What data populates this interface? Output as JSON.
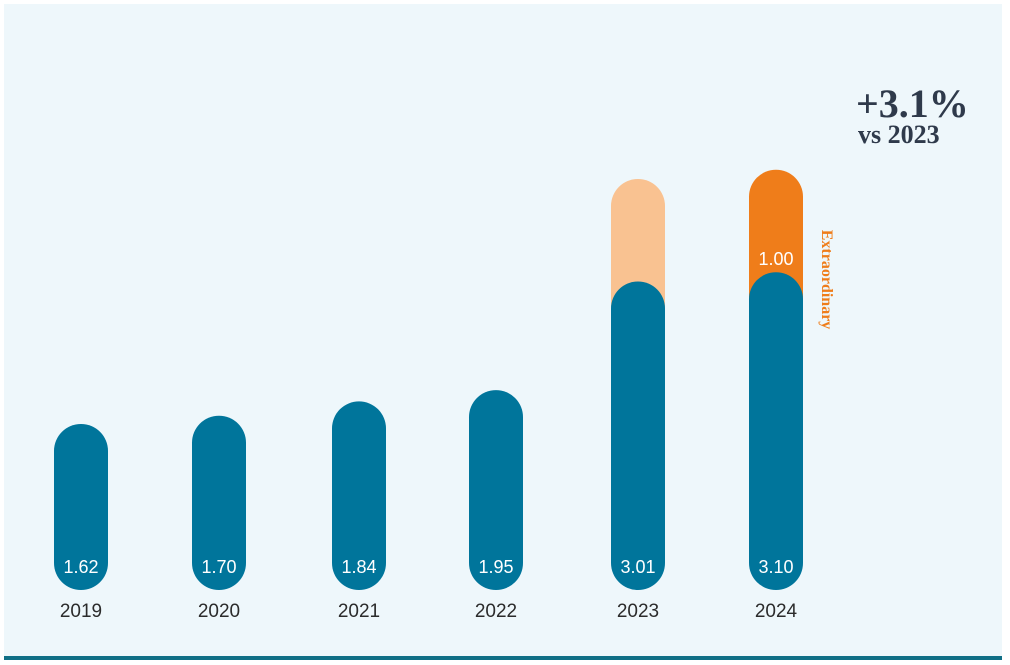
{
  "chart_data": {
    "type": "bar",
    "stacked": true,
    "categories": [
      "2019",
      "2020",
      "2021",
      "2022",
      "2023",
      "2024"
    ],
    "series": [
      {
        "values": [
          1.62,
          1.7,
          1.84,
          1.95,
          3.01,
          3.1
        ],
        "labels": [
          "1.62",
          "1.70",
          "1.84",
          "1.95",
          "3.01",
          "3.10"
        ],
        "color": "#00759b"
      },
      {
        "name": "Extraordinary",
        "values": [
          null,
          null,
          null,
          null,
          1.0,
          1.0
        ],
        "labels": [
          null,
          null,
          null,
          null,
          null,
          "1.00"
        ],
        "colors": [
          null,
          null,
          null,
          null,
          "#f9c291",
          "#ef7d1a"
        ]
      }
    ],
    "ylim": [
      0,
      4.7
    ],
    "grid": false,
    "annotation": {
      "headline": "+3.1%",
      "subline": "vs 2023",
      "color": "#2f3a4b"
    },
    "extraordinary_label": "Extraordinary",
    "extraordinary_color": "#ef7d1a"
  }
}
